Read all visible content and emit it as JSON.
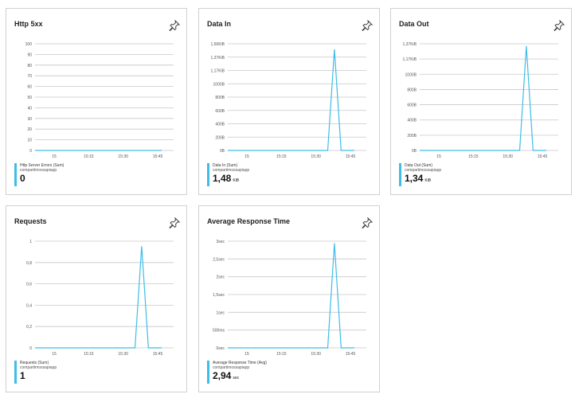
{
  "colors": {
    "series": "#3ebde8",
    "grid": "#c8c8c8",
    "axis_text": "#555555"
  },
  "icons": {
    "pin": "pin-icon"
  },
  "tiles": [
    {
      "title": "Http 5xx",
      "metric": "Http Server Errors (Sum)",
      "resource": "compartimossapiapp",
      "value": "0",
      "unit": "",
      "chart_data": {
        "type": "line",
        "title": "Http 5xx",
        "y_ticks": [
          "100",
          "90",
          "80",
          "70",
          "60",
          "50",
          "40",
          "30",
          "20",
          "10",
          "0"
        ],
        "x_ticks": [
          "15",
          "15:15",
          "15:30",
          "15:45"
        ],
        "series": [
          {
            "name": "Http Server Errors (Sum)",
            "values": [
              0,
              0,
              0,
              0,
              0,
              0,
              0,
              0,
              0,
              0,
              0,
              0,
              0,
              0,
              0,
              0,
              0,
              0,
              0,
              0
            ]
          }
        ],
        "ylim": [
          0,
          100
        ]
      }
    },
    {
      "title": "Data In",
      "metric": "Data In (Sum)",
      "resource": "compartimossapiapp",
      "value": "1,48",
      "unit": "KiB",
      "chart_data": {
        "type": "line",
        "title": "Data In",
        "y_ticks": [
          "1,56KiB",
          "1,37KiB",
          "1,17KiB",
          "1000B",
          "800B",
          "600B",
          "400B",
          "200B",
          "0B"
        ],
        "x_ticks": [
          "15",
          "15:15",
          "15:30",
          "15:45"
        ],
        "series": [
          {
            "name": "Data In (Sum)",
            "values": [
              0,
              0,
              0,
              0,
              0,
              0,
              0,
              0,
              0,
              0,
              0,
              0,
              0,
              0,
              0,
              0,
              1.48,
              0,
              0,
              0
            ]
          }
        ],
        "ylim": [
          0,
          1.56
        ]
      }
    },
    {
      "title": "Data Out",
      "metric": "Data Out (Sum)",
      "resource": "compartimossapiapp",
      "value": "1,34",
      "unit": "KiB",
      "chart_data": {
        "type": "line",
        "title": "Data Out",
        "y_ticks": [
          "1,37KiB",
          "1,17KiB",
          "1000B",
          "800B",
          "600B",
          "400B",
          "200B",
          "0B"
        ],
        "x_ticks": [
          "15",
          "15:15",
          "15:30",
          "15:45"
        ],
        "series": [
          {
            "name": "Data Out (Sum)",
            "values": [
              0,
              0,
              0,
              0,
              0,
              0,
              0,
              0,
              0,
              0,
              0,
              0,
              0,
              0,
              0,
              0,
              1.34,
              0,
              0,
              0
            ]
          }
        ],
        "ylim": [
          0,
          1.37
        ]
      }
    },
    {
      "title": "Requests",
      "metric": "Requests (Sum)",
      "resource": "compartimossapiapp",
      "value": "1",
      "unit": "",
      "chart_data": {
        "type": "line",
        "title": "Requests",
        "y_ticks": [
          "1",
          "0,8",
          "0,6",
          "0,4",
          "0,2",
          "0"
        ],
        "x_ticks": [
          "15",
          "15:15",
          "15:30",
          "15:45"
        ],
        "series": [
          {
            "name": "Requests (Sum)",
            "values": [
              0,
              0,
              0,
              0,
              0,
              0,
              0,
              0,
              0,
              0,
              0,
              0,
              0,
              0,
              0,
              0,
              1,
              0,
              0,
              0
            ]
          }
        ],
        "ylim": [
          0,
          1.05
        ]
      }
    },
    {
      "title": "Average Response Time",
      "metric": "Average Response Time (Avg)",
      "resource": "compartimossapiapp",
      "value": "2,94",
      "unit": "sec",
      "chart_data": {
        "type": "line",
        "title": "Average Response Time",
        "y_ticks": [
          "3sec",
          "2,5sec",
          "2sec",
          "1,5sec",
          "1sec",
          "500ms",
          "0sec"
        ],
        "x_ticks": [
          "15",
          "15:15",
          "15:30",
          "15:45"
        ],
        "series": [
          {
            "name": "Average Response Time (Avg)",
            "values": [
              0,
              0,
              0,
              0,
              0,
              0,
              0,
              0,
              0,
              0,
              0,
              0,
              0,
              0,
              0,
              0,
              2.94,
              0,
              0,
              0
            ]
          }
        ],
        "ylim": [
          0,
          3
        ]
      }
    }
  ]
}
